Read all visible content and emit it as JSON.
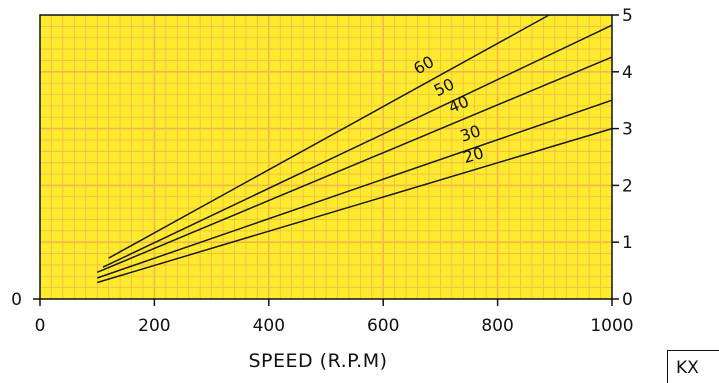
{
  "chart_data": {
    "type": "line",
    "title": "",
    "xlabel": "SPEED (R.P.M)",
    "ylabel": "",
    "xlim": [
      0,
      1000
    ],
    "ylim": [
      0,
      5
    ],
    "left_axis_ticks": [
      "0"
    ],
    "x_ticks": [
      "0",
      "200",
      "400",
      "600",
      "800",
      "1000"
    ],
    "y_ticks_right": [
      "0",
      "1",
      "2",
      "3",
      "4",
      "5"
    ],
    "grid": true,
    "grid_color": "#f2b84b",
    "background_color": "#ffeb2e",
    "line_color": "#1a1a1a",
    "series": [
      {
        "name": "20",
        "x": [
          100,
          1000
        ],
        "y": [
          0.29,
          3.0
        ]
      },
      {
        "name": "30",
        "x": [
          100,
          1000
        ],
        "y": [
          0.37,
          3.5
        ]
      },
      {
        "name": "40",
        "x": [
          100,
          1000
        ],
        "y": [
          0.47,
          4.26
        ]
      },
      {
        "name": "50",
        "x": [
          110,
          1000
        ],
        "y": [
          0.56,
          4.82
        ]
      },
      {
        "name": "60",
        "x": [
          120,
          890
        ],
        "y": [
          0.72,
          5.0
        ]
      }
    ]
  },
  "corner_tag": "KX"
}
